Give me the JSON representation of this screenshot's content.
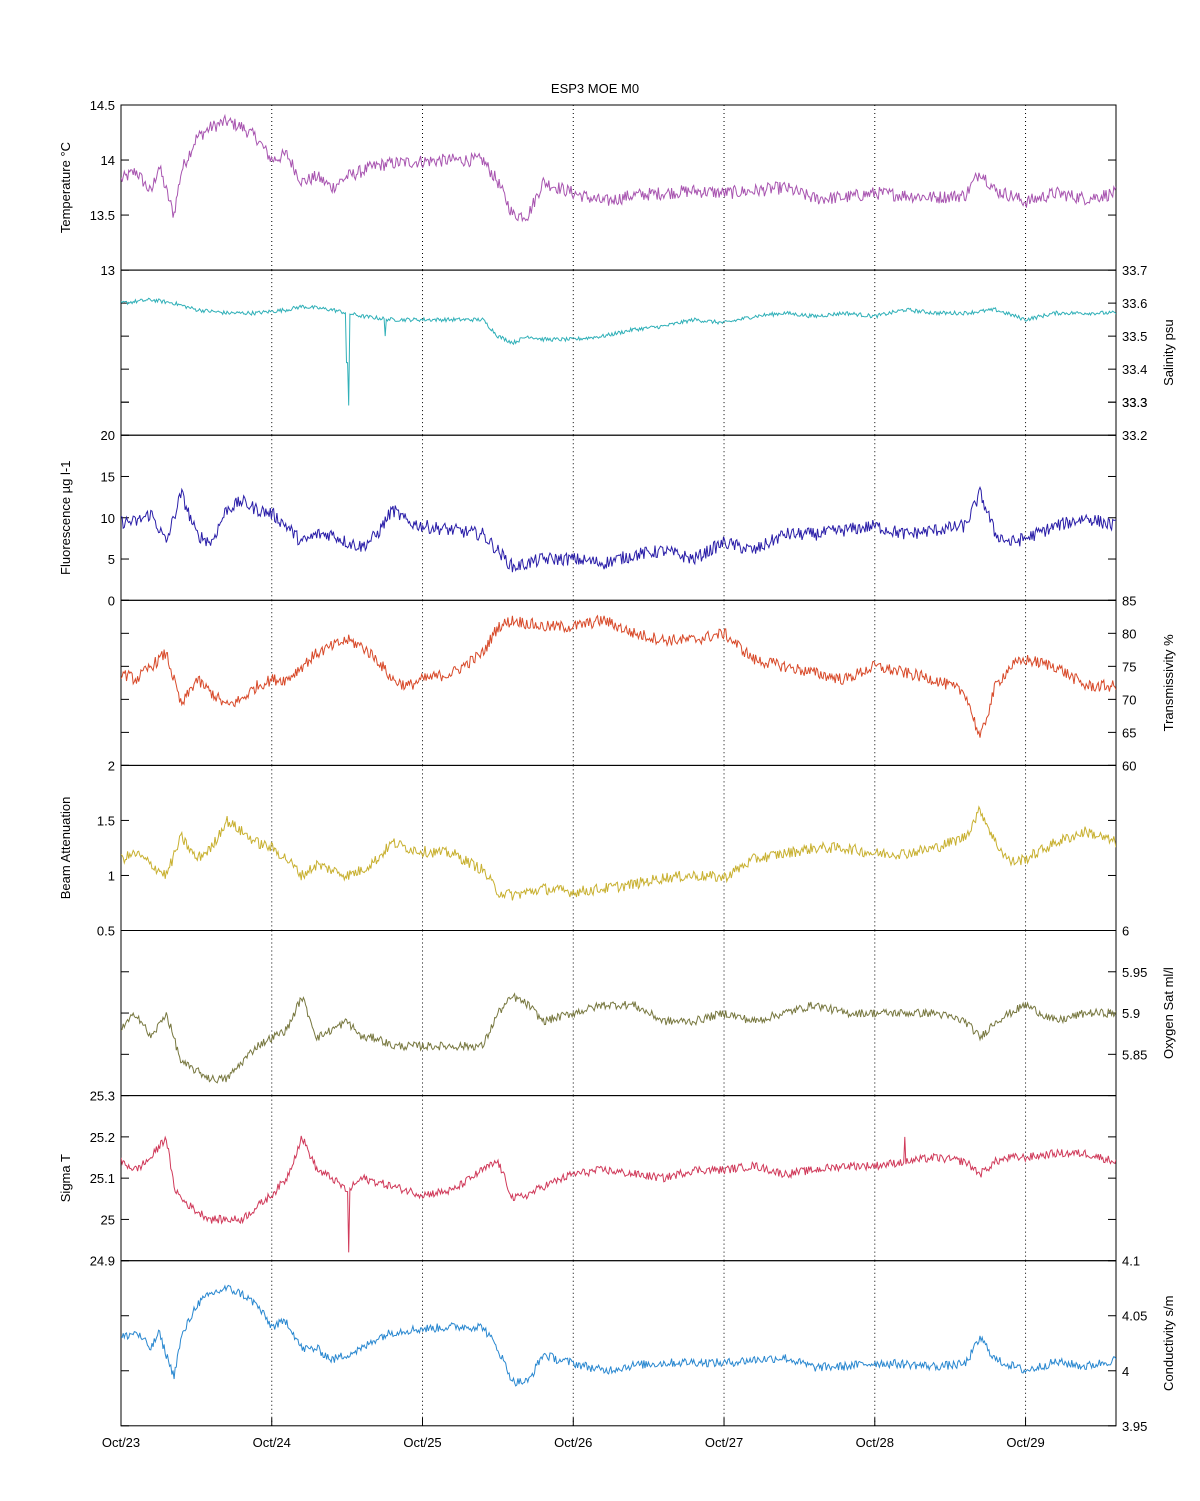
{
  "chart_data": {
    "type": "line",
    "title": "ESP3 MOE   M0",
    "x_tick_labels": [
      "Oct/23",
      "Oct/24",
      "Oct/25",
      "Oct/26",
      "Oct/27",
      "Oct/28",
      "Oct/29"
    ],
    "x_range_days": [
      0,
      6.6
    ],
    "grid": "vertical dotted lines at each day",
    "panels": [
      {
        "id": "temperature",
        "ylabel": "Temperature °C",
        "axis_side": "left",
        "color": "#a855b0",
        "ylim": [
          13,
          14.5
        ],
        "ticks": [
          "13",
          "13.5",
          "14",
          "14.5"
        ],
        "tick_values": [
          13,
          13.5,
          14,
          14.5
        ],
        "noise": 0.06,
        "x": [
          0,
          0.1,
          0.2,
          0.25,
          0.35,
          0.4,
          0.5,
          0.6,
          0.7,
          0.8,
          0.9,
          1.0,
          1.1,
          1.2,
          1.3,
          1.4,
          1.5,
          1.6,
          1.7,
          1.8,
          1.9,
          2.0,
          2.2,
          2.4,
          2.5,
          2.6,
          2.7,
          2.8,
          2.9,
          3.0,
          3.2,
          3.4,
          3.6,
          3.8,
          4.0,
          4.2,
          4.4,
          4.6,
          4.8,
          5.0,
          5.2,
          5.4,
          5.6,
          5.7,
          5.8,
          5.9,
          6.0,
          6.2,
          6.4,
          6.6
        ],
        "y": [
          13.82,
          13.9,
          13.7,
          13.95,
          13.5,
          13.9,
          14.2,
          14.3,
          14.35,
          14.3,
          14.2,
          14.0,
          14.05,
          13.8,
          13.85,
          13.75,
          13.85,
          13.9,
          13.95,
          13.97,
          13.98,
          13.99,
          14.0,
          14.0,
          13.8,
          13.5,
          13.5,
          13.8,
          13.75,
          13.7,
          13.62,
          13.68,
          13.7,
          13.72,
          13.7,
          13.72,
          13.75,
          13.65,
          13.66,
          13.7,
          13.68,
          13.66,
          13.68,
          13.9,
          13.72,
          13.68,
          13.62,
          13.7,
          13.65,
          13.7
        ]
      },
      {
        "id": "salinity",
        "ylabel": "Salinity psu",
        "axis_side": "right",
        "color": "#30b0b8",
        "ylim": [
          33.2,
          33.7
        ],
        "ticks": [
          "33.2",
          "33.3",
          "33.3",
          "33.4",
          "33.5",
          "33.6",
          "33.7"
        ],
        "tick_values": [
          33.2,
          33.3,
          33.3,
          33.4,
          33.5,
          33.6,
          33.7
        ],
        "noise": 0.006,
        "x": [
          0,
          0.2,
          0.35,
          0.5,
          0.7,
          0.9,
          1.1,
          1.2,
          1.4,
          1.5,
          1.6,
          1.8,
          2.0,
          2.2,
          2.4,
          2.5,
          2.6,
          2.7,
          2.8,
          3.0,
          3.2,
          3.4,
          3.6,
          3.8,
          4.0,
          4.2,
          4.4,
          4.6,
          4.8,
          5.0,
          5.2,
          5.4,
          5.6,
          5.8,
          6.0,
          6.2,
          6.4,
          6.6
        ],
        "y": [
          33.6,
          33.61,
          33.6,
          33.58,
          33.57,
          33.57,
          33.58,
          33.59,
          33.58,
          33.57,
          33.56,
          33.55,
          33.55,
          33.55,
          33.55,
          33.5,
          33.48,
          33.5,
          33.49,
          33.49,
          33.5,
          33.52,
          33.53,
          33.55,
          33.54,
          33.56,
          33.57,
          33.56,
          33.57,
          33.56,
          33.58,
          33.57,
          33.57,
          33.58,
          33.55,
          33.57,
          33.57,
          33.57
        ],
        "spikes": [
          {
            "x": 1.51,
            "y": 33.29
          },
          {
            "x": 1.5,
            "y": 33.42
          },
          {
            "x": 1.75,
            "y": 33.5
          }
        ]
      },
      {
        "id": "fluorescence",
        "ylabel": "Fluorescence µg l-1",
        "axis_side": "left",
        "color": "#2a1ea8",
        "ylim": [
          0,
          20
        ],
        "ticks": [
          "0",
          "5",
          "10",
          "15",
          "20"
        ],
        "tick_values": [
          0,
          5,
          10,
          15,
          20
        ],
        "noise": 0.8,
        "x": [
          0,
          0.1,
          0.2,
          0.3,
          0.4,
          0.5,
          0.6,
          0.7,
          0.8,
          0.9,
          1.0,
          1.1,
          1.2,
          1.3,
          1.4,
          1.5,
          1.6,
          1.7,
          1.8,
          1.9,
          2.0,
          2.2,
          2.4,
          2.5,
          2.6,
          2.7,
          2.8,
          3.0,
          3.2,
          3.4,
          3.6,
          3.8,
          3.9,
          4.0,
          4.1,
          4.2,
          4.4,
          4.6,
          4.8,
          5.0,
          5.2,
          5.4,
          5.6,
          5.7,
          5.8,
          5.9,
          6.0,
          6.2,
          6.4,
          6.6
        ],
        "y": [
          9.5,
          9.5,
          10.5,
          7,
          13,
          8,
          7,
          11,
          12,
          11,
          10.5,
          9,
          7,
          8,
          8,
          7,
          6.5,
          8,
          11,
          9.5,
          9,
          8.5,
          8,
          6,
          4,
          4.5,
          5,
          5,
          4.5,
          5.5,
          6,
          5,
          6,
          7,
          6.5,
          6,
          8,
          8,
          8.5,
          9,
          8,
          8.5,
          9,
          13,
          8,
          7,
          7.5,
          9,
          10,
          9
        ]
      },
      {
        "id": "transmissivity",
        "ylabel": "Transmissivity %",
        "axis_side": "right",
        "color": "#d84a2a",
        "ylim": [
          60,
          85
        ],
        "ticks": [
          "60",
          "65",
          "70",
          "75",
          "80",
          "85"
        ],
        "tick_values": [
          60,
          65,
          70,
          75,
          80,
          85
        ],
        "noise": 0.9,
        "x": [
          0,
          0.1,
          0.2,
          0.3,
          0.4,
          0.5,
          0.6,
          0.7,
          0.8,
          0.9,
          1.0,
          1.1,
          1.2,
          1.3,
          1.4,
          1.5,
          1.6,
          1.7,
          1.8,
          1.9,
          2.0,
          2.2,
          2.4,
          2.5,
          2.6,
          2.8,
          3.0,
          3.2,
          3.4,
          3.6,
          3.8,
          4.0,
          4.2,
          4.4,
          4.6,
          4.8,
          5.0,
          5.2,
          5.4,
          5.6,
          5.7,
          5.8,
          5.9,
          6.0,
          6.2,
          6.4,
          6.6
        ],
        "y": [
          74,
          73,
          75,
          77,
          69,
          73,
          71,
          69,
          70,
          72,
          73,
          73,
          75,
          77,
          78,
          79,
          78,
          76,
          73,
          72,
          73,
          74,
          77,
          81,
          82,
          81,
          81,
          82,
          80,
          79,
          79,
          80,
          76,
          75,
          74,
          73,
          75,
          74,
          73,
          71,
          64,
          72,
          75,
          76,
          75,
          72,
          72
        ]
      },
      {
        "id": "beam_attenuation",
        "ylabel": "Beam Attenuation",
        "axis_side": "left",
        "color": "#c8b030",
        "ylim": [
          0.5,
          2
        ],
        "ticks": [
          "0.5",
          "1",
          "1.5",
          "2"
        ],
        "tick_values": [
          0.5,
          1,
          1.5,
          2
        ],
        "noise": 0.05,
        "x": [
          0,
          0.1,
          0.2,
          0.3,
          0.4,
          0.5,
          0.6,
          0.7,
          0.8,
          0.9,
          1.0,
          1.1,
          1.2,
          1.3,
          1.4,
          1.5,
          1.6,
          1.7,
          1.8,
          1.9,
          2.0,
          2.2,
          2.4,
          2.5,
          2.6,
          2.8,
          3.0,
          3.2,
          3.4,
          3.6,
          3.8,
          4.0,
          4.2,
          4.4,
          4.6,
          4.8,
          5.0,
          5.2,
          5.4,
          5.6,
          5.7,
          5.8,
          5.9,
          6.0,
          6.2,
          6.4,
          6.6
        ],
        "y": [
          1.15,
          1.2,
          1.1,
          1.0,
          1.35,
          1.15,
          1.25,
          1.5,
          1.4,
          1.3,
          1.25,
          1.15,
          1.0,
          1.1,
          1.05,
          1.0,
          1.05,
          1.15,
          1.3,
          1.25,
          1.22,
          1.2,
          1.05,
          0.85,
          0.82,
          0.88,
          0.85,
          0.88,
          0.92,
          0.98,
          1.0,
          0.98,
          1.15,
          1.2,
          1.25,
          1.25,
          1.2,
          1.2,
          1.25,
          1.35,
          1.6,
          1.3,
          1.12,
          1.15,
          1.3,
          1.4,
          1.3
        ]
      },
      {
        "id": "oxygen_sat",
        "ylabel": "Oxygen Sat ml/l",
        "axis_side": "right",
        "color": "#787840",
        "ylim": [
          5.8,
          6.0
        ],
        "ticks": [
          "5.85",
          "5.9",
          "5.95",
          "6"
        ],
        "tick_values": [
          5.85,
          5.9,
          5.95,
          6.0
        ],
        "noise": 0.005,
        "x": [
          0,
          0.1,
          0.2,
          0.3,
          0.4,
          0.5,
          0.6,
          0.7,
          0.8,
          0.9,
          1.0,
          1.1,
          1.2,
          1.3,
          1.4,
          1.5,
          1.6,
          1.7,
          1.8,
          1.9,
          2.0,
          2.2,
          2.4,
          2.5,
          2.6,
          2.7,
          2.8,
          3.0,
          3.2,
          3.4,
          3.6,
          3.8,
          4.0,
          4.2,
          4.4,
          4.6,
          4.8,
          5.0,
          5.2,
          5.4,
          5.6,
          5.7,
          5.8,
          5.9,
          6.0,
          6.2,
          6.4,
          6.6
        ],
        "y": [
          5.88,
          5.9,
          5.87,
          5.9,
          5.84,
          5.83,
          5.82,
          5.82,
          5.84,
          5.86,
          5.87,
          5.88,
          5.92,
          5.87,
          5.88,
          5.89,
          5.87,
          5.87,
          5.86,
          5.86,
          5.86,
          5.86,
          5.86,
          5.9,
          5.92,
          5.91,
          5.89,
          5.9,
          5.91,
          5.91,
          5.89,
          5.89,
          5.9,
          5.89,
          5.9,
          5.91,
          5.9,
          5.9,
          5.9,
          5.9,
          5.89,
          5.87,
          5.89,
          5.9,
          5.91,
          5.89,
          5.9,
          5.9
        ]
      },
      {
        "id": "sigma_t",
        "ylabel": "Sigma T",
        "axis_side": "left",
        "color": "#d03a5a",
        "ylim": [
          24.9,
          25.3
        ],
        "ticks": [
          "24.9",
          "25",
          "25.1",
          "25.2",
          "25.3"
        ],
        "tick_values": [
          24.9,
          25.0,
          25.1,
          25.2,
          25.3
        ],
        "noise": 0.01,
        "x": [
          0,
          0.1,
          0.2,
          0.3,
          0.35,
          0.4,
          0.5,
          0.6,
          0.7,
          0.8,
          0.9,
          1.0,
          1.1,
          1.2,
          1.3,
          1.4,
          1.5,
          1.6,
          1.7,
          1.8,
          1.9,
          2.0,
          2.2,
          2.4,
          2.5,
          2.6,
          2.7,
          2.8,
          3.0,
          3.2,
          3.4,
          3.6,
          3.8,
          4.0,
          4.2,
          4.4,
          4.6,
          4.8,
          5.0,
          5.2,
          5.4,
          5.6,
          5.7,
          5.8,
          5.9,
          6.0,
          6.2,
          6.4,
          6.6
        ],
        "y": [
          25.14,
          25.12,
          25.15,
          25.2,
          25.08,
          25.05,
          25.02,
          25.0,
          25.0,
          25.0,
          25.03,
          25.06,
          25.1,
          25.2,
          25.12,
          25.1,
          25.07,
          25.1,
          25.09,
          25.08,
          25.07,
          25.06,
          25.07,
          25.12,
          25.14,
          25.05,
          25.06,
          25.08,
          25.11,
          25.12,
          25.11,
          25.1,
          25.12,
          25.12,
          25.13,
          25.11,
          25.12,
          25.13,
          25.13,
          25.14,
          25.15,
          25.14,
          25.11,
          25.14,
          25.15,
          25.15,
          25.16,
          25.16,
          25.14
        ],
        "spikes": [
          {
            "x": 1.51,
            "y": 24.92
          },
          {
            "x": 5.2,
            "y": 25.2
          }
        ]
      },
      {
        "id": "conductivity",
        "ylabel": "Conductivity s/m",
        "axis_side": "right",
        "color": "#2a88d0",
        "ylim": [
          3.95,
          4.1
        ],
        "ticks": [
          "3.95",
          "4",
          "4.05",
          "4.1"
        ],
        "tick_values": [
          3.95,
          4.0,
          4.05,
          4.1
        ],
        "noise": 0.004,
        "x": [
          0,
          0.1,
          0.2,
          0.25,
          0.35,
          0.4,
          0.5,
          0.6,
          0.7,
          0.8,
          0.9,
          1.0,
          1.1,
          1.2,
          1.3,
          1.4,
          1.5,
          1.6,
          1.7,
          1.8,
          1.9,
          2.0,
          2.2,
          2.4,
          2.5,
          2.6,
          2.7,
          2.8,
          2.9,
          3.0,
          3.2,
          3.4,
          3.6,
          3.8,
          4.0,
          4.2,
          4.4,
          4.6,
          4.8,
          5.0,
          5.2,
          5.4,
          5.6,
          5.7,
          5.8,
          5.9,
          6.0,
          6.2,
          6.4,
          6.6
        ],
        "y": [
          4.03,
          4.035,
          4.02,
          4.035,
          3.995,
          4.03,
          4.06,
          4.07,
          4.075,
          4.07,
          4.06,
          4.04,
          4.045,
          4.02,
          4.02,
          4.01,
          4.015,
          4.02,
          4.03,
          4.035,
          4.037,
          4.038,
          4.04,
          4.04,
          4.02,
          3.99,
          3.99,
          4.015,
          4.01,
          4.007,
          4.0,
          4.005,
          4.007,
          4.008,
          4.007,
          4.01,
          4.012,
          4.003,
          4.004,
          4.007,
          4.006,
          4.004,
          4.006,
          4.03,
          4.01,
          4.005,
          4.0,
          4.008,
          4.004,
          4.01
        ]
      }
    ]
  }
}
